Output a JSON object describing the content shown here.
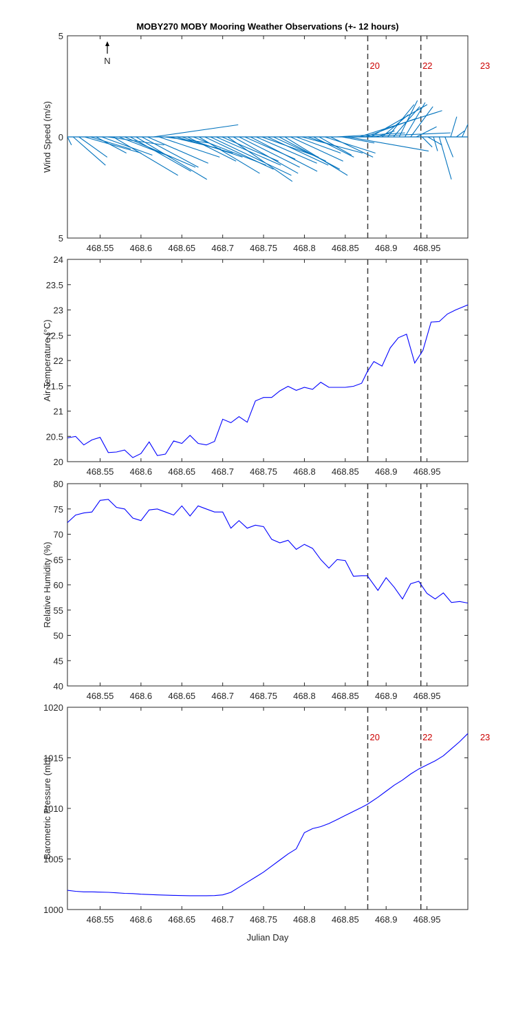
{
  "figure": {
    "title": "MOBY270 MOBY Mooring Weather Observations (+- 12 hours)",
    "xlabel": "Julian Day",
    "north_label": "N"
  },
  "markers": {
    "lines": [
      468.8775,
      468.9425
    ],
    "labels": [
      {
        "text": "20",
        "x": 468.88
      },
      {
        "text": "22",
        "x": 468.9445
      },
      {
        "text": "23",
        "x": 469.015
      }
    ]
  },
  "chart_data": [
    {
      "type": "line",
      "title": "",
      "xlabel": "",
      "ylabel": "Wind Speed (m/s)",
      "xlim": [
        468.51,
        469.0
      ],
      "ylim": [
        -5,
        5
      ],
      "yticks": [
        -5,
        0,
        5
      ],
      "ytick_labels": [
        "5",
        "0",
        "5"
      ],
      "xticks": [
        468.55,
        468.6,
        468.65,
        468.7,
        468.75,
        468.8,
        468.85,
        468.9,
        468.95
      ],
      "grid": false,
      "color": "#0072BD",
      "series": [
        {
          "values": [
            {
              "x": 468.51,
              "u": 0.2,
              "v": -0.4
            },
            {
              "x": 468.517,
              "u": 1.6,
              "v": -1.4
            },
            {
              "x": 468.524,
              "u": 1.4,
              "v": -1.0
            },
            {
              "x": 468.531,
              "u": 2.8,
              "v": -0.8
            },
            {
              "x": 468.538,
              "u": 2.0,
              "v": -0.6
            },
            {
              "x": 468.545,
              "u": 1.5,
              "v": -0.8
            },
            {
              "x": 468.552,
              "u": 2.5,
              "v": -0.9
            },
            {
              "x": 468.559,
              "u": 2.8,
              "v": -0.4
            },
            {
              "x": 468.566,
              "u": 3.2,
              "v": -1.9
            },
            {
              "x": 468.573,
              "u": 2.6,
              "v": -1.0
            },
            {
              "x": 468.58,
              "u": 3.5,
              "v": -1.5
            },
            {
              "x": 468.587,
              "u": 3.0,
              "v": -1.7
            },
            {
              "x": 468.594,
              "u": 3.5,
              "v": -2.1
            },
            {
              "x": 468.601,
              "u": 2.8,
              "v": -1.5
            },
            {
              "x": 468.608,
              "u": 3.0,
              "v": -1.3
            },
            {
              "x": 468.615,
              "u": 4.2,
              "v": 0.6
            },
            {
              "x": 468.622,
              "u": 3.0,
              "v": -1.0
            },
            {
              "x": 468.629,
              "u": 2.2,
              "v": -0.3
            },
            {
              "x": 468.636,
              "u": 2.5,
              "v": -0.6
            },
            {
              "x": 468.643,
              "u": 2.8,
              "v": -0.8
            },
            {
              "x": 468.65,
              "u": 3.0,
              "v": -1.0
            },
            {
              "x": 468.657,
              "u": 2.4,
              "v": -1.2
            },
            {
              "x": 468.664,
              "u": 3.6,
              "v": -1.4
            },
            {
              "x": 468.671,
              "u": 3.0,
              "v": -1.8
            },
            {
              "x": 468.678,
              "u": 3.4,
              "v": -1.6
            },
            {
              "x": 468.685,
              "u": 4.0,
              "v": -1.9
            },
            {
              "x": 468.692,
              "u": 3.2,
              "v": -1.4
            },
            {
              "x": 468.699,
              "u": 2.8,
              "v": -1.2
            },
            {
              "x": 468.706,
              "u": 3.2,
              "v": -2.2
            },
            {
              "x": 468.713,
              "u": 3.2,
              "v": -1.8
            },
            {
              "x": 468.72,
              "u": 3.0,
              "v": -1.5
            },
            {
              "x": 468.727,
              "u": 2.5,
              "v": -1.1
            },
            {
              "x": 468.734,
              "u": 3.3,
              "v": -1.7
            },
            {
              "x": 468.741,
              "u": 3.0,
              "v": -1.3
            },
            {
              "x": 468.748,
              "u": 2.8,
              "v": -1.0
            },
            {
              "x": 468.755,
              "u": 3.0,
              "v": -1.4
            },
            {
              "x": 468.762,
              "u": 2.6,
              "v": -1.2
            },
            {
              "x": 468.769,
              "u": 3.0,
              "v": -1.6
            },
            {
              "x": 468.776,
              "u": 3.1,
              "v": -1.9
            },
            {
              "x": 468.783,
              "u": 2.6,
              "v": -1.2
            },
            {
              "x": 468.79,
              "u": 2.2,
              "v": -0.8
            },
            {
              "x": 468.797,
              "u": 3.0,
              "v": -0.8
            },
            {
              "x": 468.804,
              "u": 1.5,
              "v": -0.5
            },
            {
              "x": 468.811,
              "u": 2.0,
              "v": -1.0
            },
            {
              "x": 468.818,
              "u": 1.6,
              "v": -0.9
            },
            {
              "x": 468.825,
              "u": 2.5,
              "v": -0.8
            },
            {
              "x": 468.832,
              "u": 2.1,
              "v": -1.0
            },
            {
              "x": 468.839,
              "u": 3.4,
              "v": 0.2
            },
            {
              "x": 468.846,
              "u": 1.6,
              "v": -0.3
            },
            {
              "x": 468.853,
              "u": 4.0,
              "v": -0.7
            },
            {
              "x": 468.86,
              "u": 4.8,
              "v": 0.2
            },
            {
              "x": 468.867,
              "u": 4.1,
              "v": 1.3
            },
            {
              "x": 468.874,
              "u": 2.5,
              "v": 0.9
            },
            {
              "x": 468.881,
              "u": 2.8,
              "v": 1.6
            },
            {
              "x": 468.888,
              "u": 0.9,
              "v": 0.3
            },
            {
              "x": 468.895,
              "u": 1.3,
              "v": 1.1
            },
            {
              "x": 468.902,
              "u": 1.3,
              "v": 1.6
            },
            {
              "x": 468.909,
              "u": 1.3,
              "v": 1.5
            },
            {
              "x": 468.916,
              "u": 0.9,
              "v": 1.8
            },
            {
              "x": 468.923,
              "u": 1.0,
              "v": 1.7
            },
            {
              "x": 468.93,
              "u": 1.1,
              "v": 1.5
            },
            {
              "x": 468.937,
              "u": 1.0,
              "v": 0.5
            },
            {
              "x": 468.944,
              "u": 0.5,
              "v": -0.5
            },
            {
              "x": 468.951,
              "u": 0.7,
              "v": -0.4
            },
            {
              "x": 468.958,
              "u": 0.2,
              "v": -0.7
            },
            {
              "x": 468.965,
              "u": 0.6,
              "v": -2.1
            },
            {
              "x": 468.972,
              "u": 0.4,
              "v": -1.0
            },
            {
              "x": 468.979,
              "u": 0.3,
              "v": 1.0
            },
            {
              "x": 468.986,
              "u": 0.4,
              "v": 0.3
            },
            {
              "x": 468.993,
              "u": 0.5,
              "v": 1.1
            }
          ]
        }
      ]
    },
    {
      "type": "line",
      "title": "",
      "xlabel": "",
      "ylabel": "Air Temperature (°C)",
      "xlim": [
        468.51,
        469.0
      ],
      "ylim": [
        20,
        24
      ],
      "yticks": [
        20,
        20.5,
        21,
        21.5,
        22,
        22.5,
        23,
        23.5,
        24
      ],
      "xticks": [
        468.55,
        468.6,
        468.65,
        468.7,
        468.75,
        468.8,
        468.85,
        468.9,
        468.95
      ],
      "grid": false,
      "color": "#0000ff",
      "series": [
        {
          "x": [
            468.51,
            468.52,
            468.53,
            468.54,
            468.55,
            468.56,
            468.57,
            468.58,
            468.59,
            468.6,
            468.61,
            468.62,
            468.63,
            468.64,
            468.65,
            468.66,
            468.67,
            468.68,
            468.69,
            468.7,
            468.71,
            468.72,
            468.73,
            468.74,
            468.75,
            468.76,
            468.77,
            468.78,
            468.79,
            468.8,
            468.81,
            468.82,
            468.83,
            468.84,
            468.85,
            468.86,
            468.87,
            468.877,
            468.885,
            468.895,
            468.905,
            468.915,
            468.925,
            468.935,
            468.945,
            468.955,
            468.965,
            468.975,
            468.985,
            469.0
          ],
          "y": [
            20.47,
            20.5,
            20.33,
            20.43,
            20.48,
            20.18,
            20.19,
            20.23,
            20.08,
            20.16,
            20.39,
            20.12,
            20.15,
            20.41,
            20.36,
            20.52,
            20.36,
            20.33,
            20.4,
            20.84,
            20.77,
            20.89,
            20.78,
            21.2,
            21.27,
            21.27,
            21.4,
            21.49,
            21.41,
            21.47,
            21.43,
            21.57,
            21.47,
            21.47,
            21.47,
            21.49,
            21.55,
            21.78,
            21.98,
            21.89,
            22.25,
            22.45,
            22.52,
            21.95,
            22.2,
            22.76,
            22.77,
            22.92,
            23.0,
            23.1
          ]
        }
      ]
    },
    {
      "type": "line",
      "title": "",
      "xlabel": "",
      "ylabel": "Relative Humidity (%)",
      "xlim": [
        468.51,
        469.0
      ],
      "ylim": [
        40,
        80
      ],
      "yticks": [
        40,
        45,
        50,
        55,
        60,
        65,
        70,
        75,
        80
      ],
      "xticks": [
        468.55,
        468.6,
        468.65,
        468.7,
        468.75,
        468.8,
        468.85,
        468.9,
        468.95
      ],
      "grid": false,
      "color": "#0000ff",
      "series": [
        {
          "x": [
            468.51,
            468.52,
            468.53,
            468.54,
            468.55,
            468.56,
            468.57,
            468.58,
            468.59,
            468.6,
            468.61,
            468.62,
            468.63,
            468.64,
            468.65,
            468.66,
            468.67,
            468.68,
            468.69,
            468.7,
            468.71,
            468.72,
            468.73,
            468.74,
            468.75,
            468.76,
            468.77,
            468.78,
            468.79,
            468.8,
            468.81,
            468.82,
            468.83,
            468.84,
            468.85,
            468.86,
            468.87,
            468.877,
            468.89,
            468.9,
            468.91,
            468.92,
            468.93,
            468.94,
            468.95,
            468.96,
            468.97,
            468.98,
            468.99,
            469.0
          ],
          "y": [
            72.3,
            73.8,
            74.2,
            74.4,
            76.7,
            76.9,
            75.3,
            75.0,
            73.2,
            72.7,
            74.8,
            75.0,
            74.4,
            73.8,
            75.6,
            73.6,
            75.6,
            75.0,
            74.4,
            74.4,
            71.2,
            72.7,
            71.2,
            71.8,
            71.5,
            69.0,
            68.3,
            68.8,
            67.0,
            68.0,
            67.2,
            65.0,
            63.3,
            65.0,
            64.8,
            61.7,
            61.8,
            61.8,
            58.9,
            61.4,
            59.5,
            57.2,
            60.2,
            60.7,
            58.3,
            57.2,
            58.4,
            56.5,
            56.7,
            56.4
          ]
        }
      ]
    },
    {
      "type": "line",
      "title": "",
      "xlabel": "Julian Day",
      "ylabel": "Barometric Pressure (mb)",
      "xlim": [
        468.51,
        469.0
      ],
      "ylim": [
        1000,
        1020
      ],
      "yticks": [
        1000,
        1005,
        1010,
        1015,
        1020
      ],
      "xticks": [
        468.55,
        468.6,
        468.65,
        468.7,
        468.75,
        468.8,
        468.85,
        468.9,
        468.95
      ],
      "grid": false,
      "color": "#0000ff",
      "series": [
        {
          "x": [
            468.51,
            468.52,
            468.53,
            468.54,
            468.55,
            468.56,
            468.57,
            468.58,
            468.59,
            468.6,
            468.61,
            468.62,
            468.63,
            468.64,
            468.65,
            468.66,
            468.67,
            468.68,
            468.69,
            468.7,
            468.71,
            468.72,
            468.73,
            468.74,
            468.75,
            468.76,
            468.77,
            468.78,
            468.79,
            468.8,
            468.81,
            468.82,
            468.83,
            468.84,
            468.85,
            468.86,
            468.87,
            468.877,
            468.89,
            468.9,
            468.91,
            468.92,
            468.93,
            468.94,
            468.95,
            468.96,
            468.97,
            468.98,
            468.99,
            469.0
          ],
          "y": [
            1001.9,
            1001.8,
            1001.75,
            1001.75,
            1001.72,
            1001.7,
            1001.65,
            1001.6,
            1001.58,
            1001.52,
            1001.48,
            1001.45,
            1001.42,
            1001.4,
            1001.38,
            1001.37,
            1001.37,
            1001.37,
            1001.38,
            1001.45,
            1001.7,
            1002.2,
            1002.7,
            1003.2,
            1003.7,
            1004.3,
            1004.9,
            1005.5,
            1006.0,
            1007.6,
            1008.0,
            1008.2,
            1008.5,
            1008.9,
            1009.3,
            1009.7,
            1010.1,
            1010.4,
            1011.1,
            1011.7,
            1012.3,
            1012.8,
            1013.4,
            1013.9,
            1014.3,
            1014.7,
            1015.2,
            1015.9,
            1016.6,
            1017.4
          ]
        }
      ]
    }
  ]
}
